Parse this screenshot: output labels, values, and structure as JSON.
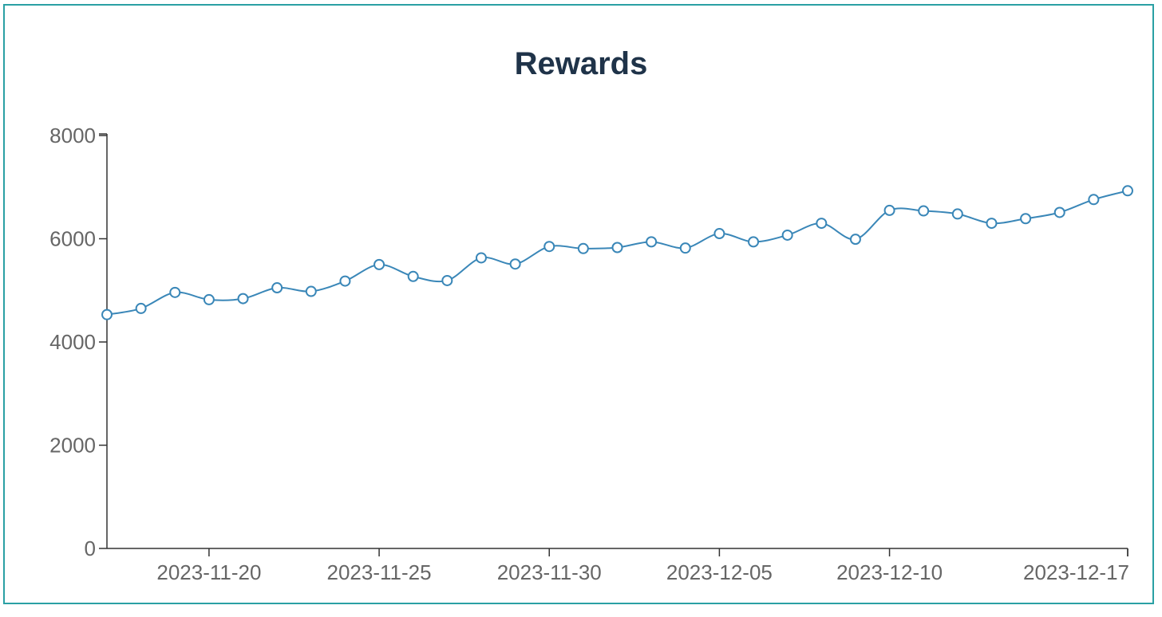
{
  "chart_data": {
    "type": "line",
    "title": "Rewards",
    "xlabel": "",
    "ylabel": "",
    "ylim": [
      0,
      8000
    ],
    "yticks": [
      0,
      2000,
      4000,
      6000,
      8000
    ],
    "xticks": [
      "2023-11-20",
      "2023-11-25",
      "2023-11-30",
      "2023-12-05",
      "2023-12-10",
      "2023-12-17"
    ],
    "grid": false,
    "series_color": "#3a87b8",
    "series": [
      {
        "x": [
          "2023-11-17",
          "2023-11-18",
          "2023-11-19",
          "2023-11-20",
          "2023-11-21",
          "2023-11-22",
          "2023-11-23",
          "2023-11-24",
          "2023-11-25",
          "2023-11-26",
          "2023-11-27",
          "2023-11-28",
          "2023-11-29",
          "2023-11-30",
          "2023-12-01",
          "2023-12-02",
          "2023-12-03",
          "2023-12-04",
          "2023-12-05",
          "2023-12-06",
          "2023-12-07",
          "2023-12-08",
          "2023-12-09",
          "2023-12-10",
          "2023-12-11",
          "2023-12-12",
          "2023-12-13",
          "2023-12-14",
          "2023-12-15",
          "2023-12-16",
          "2023-12-17"
        ],
        "values": [
          4530,
          4650,
          4960,
          4820,
          4840,
          5050,
          4980,
          5180,
          5500,
          5270,
          5190,
          5630,
          5510,
          5850,
          5810,
          5830,
          5940,
          5820,
          6100,
          5940,
          6070,
          6300,
          5990,
          6550,
          6540,
          6480,
          6300,
          6390,
          6510,
          6760,
          6930
        ]
      }
    ]
  }
}
